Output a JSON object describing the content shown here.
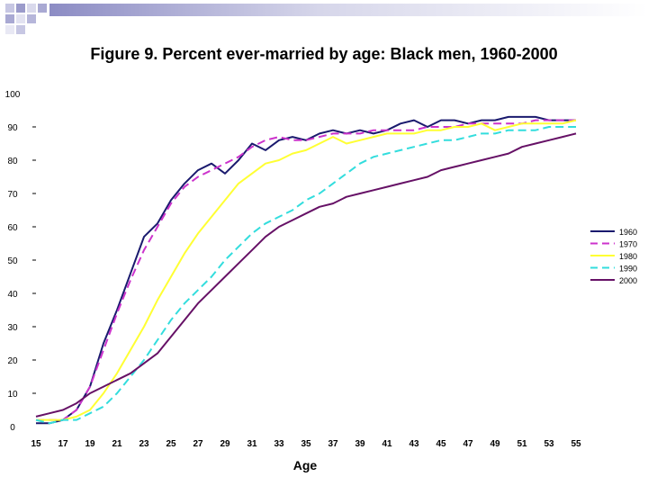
{
  "chart_data": {
    "type": "line",
    "title": "Figure 9. Percent ever-married by age: Black men, 1960-2000",
    "xlabel": "Age",
    "ylabel": "",
    "xlim": [
      15,
      55
    ],
    "ylim": [
      0,
      100
    ],
    "x_ticks": [
      15,
      17,
      19,
      21,
      23,
      25,
      27,
      29,
      31,
      33,
      35,
      37,
      39,
      41,
      43,
      45,
      47,
      49,
      51,
      53,
      55
    ],
    "y_ticks": [
      0,
      10,
      20,
      30,
      40,
      50,
      60,
      70,
      80,
      90,
      100
    ],
    "legend_position": "right",
    "x": [
      15,
      16,
      17,
      18,
      19,
      20,
      21,
      22,
      23,
      24,
      25,
      26,
      27,
      28,
      29,
      30,
      31,
      32,
      33,
      34,
      35,
      36,
      37,
      38,
      39,
      40,
      41,
      42,
      43,
      44,
      45,
      46,
      47,
      48,
      49,
      50,
      51,
      52,
      53,
      54,
      55
    ],
    "series": [
      {
        "name": "1960",
        "color": "#1a1a6e",
        "dash": "solid",
        "values": [
          1,
          1,
          2,
          5,
          12,
          25,
          35,
          46,
          57,
          61,
          68,
          73,
          77,
          79,
          76,
          80,
          85,
          83,
          86,
          87,
          86,
          88,
          89,
          88,
          89,
          88,
          89,
          91,
          92,
          90,
          92,
          92,
          91,
          92,
          92,
          93,
          93,
          93,
          92,
          92,
          92
        ]
      },
      {
        "name": "1970",
        "color": "#cc33cc",
        "dash": "dashed",
        "values": [
          2,
          2,
          2,
          5,
          12,
          23,
          34,
          44,
          53,
          60,
          67,
          72,
          75,
          77,
          79,
          81,
          84,
          86,
          87,
          86,
          86,
          87,
          88,
          88,
          88,
          89,
          89,
          89,
          89,
          90,
          90,
          90,
          91,
          91,
          91,
          91,
          91,
          92,
          92,
          92,
          92
        ]
      },
      {
        "name": "1980",
        "color": "#ffff33",
        "dash": "solid",
        "values": [
          2,
          2,
          2,
          3,
          5,
          10,
          16,
          23,
          30,
          38,
          45,
          52,
          58,
          63,
          68,
          73,
          76,
          79,
          80,
          82,
          83,
          85,
          87,
          85,
          86,
          87,
          88,
          88,
          88,
          89,
          89,
          90,
          90,
          91,
          89,
          90,
          91,
          91,
          91,
          91,
          92
        ]
      },
      {
        "name": "1990",
        "color": "#33dddd",
        "dash": "dashed",
        "values": [
          2,
          1,
          2,
          2,
          4,
          6,
          10,
          15,
          20,
          26,
          32,
          37,
          41,
          45,
          50,
          54,
          58,
          61,
          63,
          65,
          68,
          70,
          73,
          76,
          79,
          81,
          82,
          83,
          84,
          85,
          86,
          86,
          87,
          88,
          88,
          89,
          89,
          89,
          90,
          90,
          90
        ]
      },
      {
        "name": "2000",
        "color": "#661166",
        "dash": "solid",
        "values": [
          3,
          4,
          5,
          7,
          10,
          12,
          14,
          16,
          19,
          22,
          27,
          32,
          37,
          41,
          45,
          49,
          53,
          57,
          60,
          62,
          64,
          66,
          67,
          69,
          70,
          71,
          72,
          73,
          74,
          75,
          77,
          78,
          79,
          80,
          81,
          82,
          84,
          85,
          86,
          87,
          88
        ]
      }
    ]
  }
}
